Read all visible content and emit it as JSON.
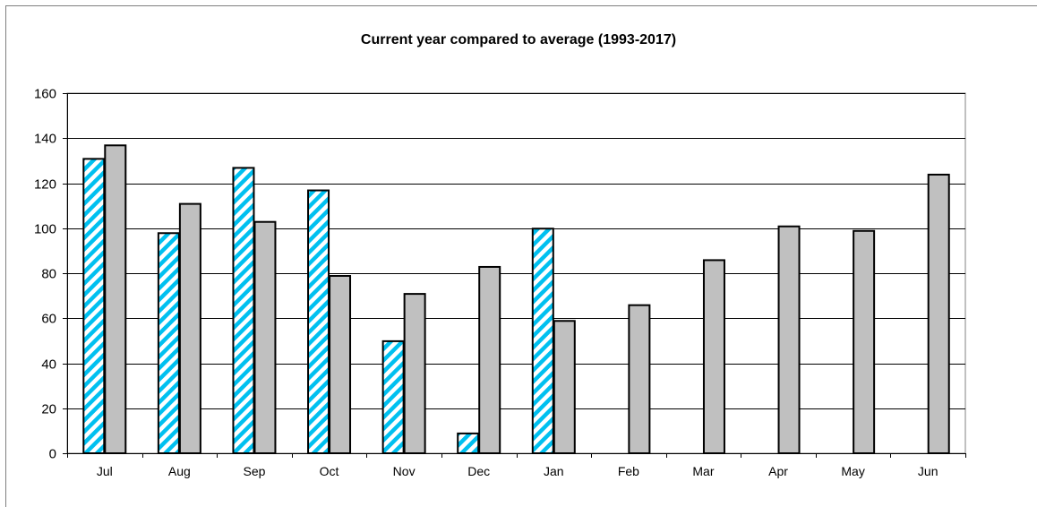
{
  "chart_data": {
    "type": "bar",
    "title": "Current year compared to average (1993-2017)",
    "xlabel": "",
    "ylabel": "",
    "categories": [
      "Jul",
      "Aug",
      "Sep",
      "Oct",
      "Nov",
      "Dec",
      "Jan",
      "Feb",
      "Mar",
      "Apr",
      "May",
      "Jun"
    ],
    "series": [
      {
        "values": [
          131,
          98,
          127,
          117,
          50,
          9,
          100,
          null,
          null,
          null,
          null,
          null
        ],
        "fill": "hatched",
        "color": "#00c0f0"
      },
      {
        "values": [
          137,
          111,
          103,
          79,
          71,
          83,
          59,
          66,
          86,
          101,
          99,
          124
        ],
        "fill": "solid",
        "color": "#c0c0c0"
      }
    ],
    "ylim": [
      0,
      160
    ],
    "yticks": [
      0,
      20,
      40,
      60,
      80,
      100,
      120,
      140,
      160
    ],
    "grid": true,
    "legend": "none"
  }
}
